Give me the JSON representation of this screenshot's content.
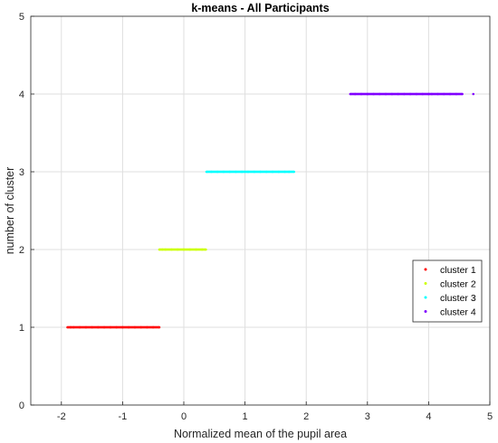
{
  "chart_data": {
    "type": "scatter",
    "title": "k-means - All Participants",
    "xlabel": "Normalized mean of the pupil area",
    "ylabel": "number of cluster",
    "xlim": [
      -2.5,
      5
    ],
    "ylim": [
      0,
      5
    ],
    "xticks": [
      -2,
      -1,
      0,
      1,
      2,
      3,
      4,
      5
    ],
    "yticks": [
      0,
      1,
      2,
      3,
      4,
      5
    ],
    "grid": true,
    "legend_position": "right",
    "series": [
      {
        "name": "cluster 1",
        "color": "#ff0000",
        "y": 1,
        "x": [
          -1.9,
          -1.85,
          -1.8,
          -1.7,
          -1.6,
          -1.5,
          -1.4,
          -1.3,
          -1.2,
          -1.1,
          -1.0,
          -0.9,
          -0.8,
          -0.7,
          -0.6,
          -0.5,
          -0.4
        ]
      },
      {
        "name": "cluster 2",
        "color": "#ccff00",
        "y": 2,
        "x": [
          -0.4,
          -0.35,
          -0.3,
          -0.2,
          -0.1,
          0.0,
          0.1,
          0.2,
          0.3,
          0.36
        ]
      },
      {
        "name": "cluster 3",
        "color": "#00ffff",
        "y": 3,
        "x": [
          0.37,
          0.45,
          0.55,
          0.65,
          0.75,
          0.85,
          0.95,
          1.05,
          1.15,
          1.25,
          1.35,
          1.45,
          1.55,
          1.65,
          1.72,
          1.8
        ]
      },
      {
        "name": "cluster 4",
        "color": "#8000ff",
        "y": 4,
        "x": [
          2.72,
          2.8,
          2.9,
          3.0,
          3.1,
          3.2,
          3.3,
          3.4,
          3.5,
          3.6,
          3.7,
          3.8,
          3.9,
          4.0,
          4.05,
          4.15,
          4.25,
          4.35,
          4.45,
          4.55,
          4.73
        ]
      }
    ]
  }
}
